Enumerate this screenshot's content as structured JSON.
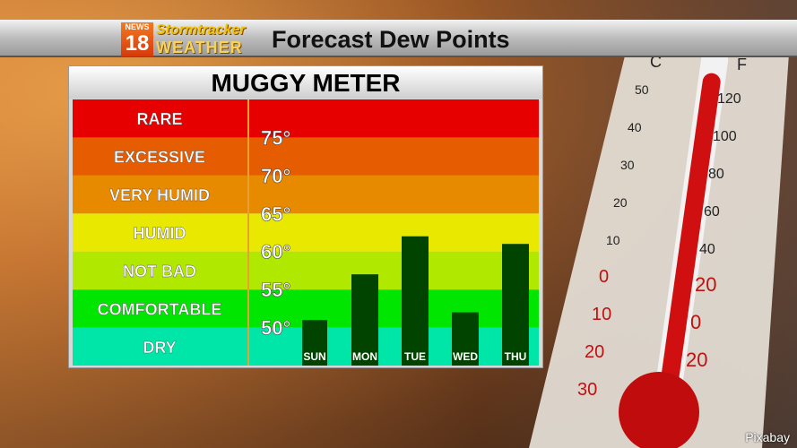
{
  "header": {
    "logo_text": [
      "NEWS",
      "18",
      "Stormtracker",
      "WEATHER"
    ],
    "title": "Forecast Dew Points"
  },
  "credit": "Pixabay",
  "thermometer": {
    "celsius_label": "C",
    "fahrenheit_label": "F",
    "celsius_ticks": [
      "50",
      "40",
      "30",
      "20",
      "10",
      "0",
      "10",
      "20",
      "30"
    ],
    "fahrenheit_ticks": [
      "120",
      "100",
      "80",
      "60",
      "40",
      "20",
      "0",
      "20"
    ]
  },
  "chart_data": {
    "type": "bar",
    "title": "MUGGY METER",
    "categories": [
      "SUN",
      "MON",
      "TUE",
      "WED",
      "THU"
    ],
    "values": [
      51,
      57,
      62,
      52,
      61
    ],
    "ylim": [
      45,
      80
    ],
    "yticks": [
      50,
      55,
      60,
      65,
      70,
      75
    ],
    "ytick_labels": [
      "50°",
      "55°",
      "60°",
      "65°",
      "70°",
      "75°"
    ],
    "bar_color": "#004400",
    "bands": [
      {
        "label": "DRY",
        "from": 45,
        "to": 50,
        "color": "#00e6a8"
      },
      {
        "label": "COMFORTABLE",
        "from": 50,
        "to": 55,
        "color": "#00e600"
      },
      {
        "label": "NOT BAD",
        "from": 55,
        "to": 60,
        "color": "#b0e800"
      },
      {
        "label": "HUMID",
        "from": 60,
        "to": 65,
        "color": "#e8e800"
      },
      {
        "label": "VERY HUMID",
        "from": 65,
        "to": 70,
        "color": "#e88a00"
      },
      {
        "label": "EXCESSIVE",
        "from": 70,
        "to": 75,
        "color": "#e65c00"
      },
      {
        "label": "RARE",
        "from": 75,
        "to": 80,
        "color": "#e60000"
      }
    ]
  }
}
